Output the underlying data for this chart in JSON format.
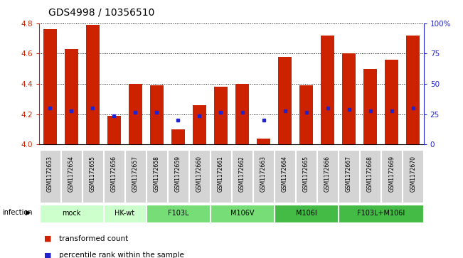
{
  "title": "GDS4998 / 10356510",
  "samples": [
    "GSM1172653",
    "GSM1172654",
    "GSM1172655",
    "GSM1172656",
    "GSM1172657",
    "GSM1172658",
    "GSM1172659",
    "GSM1172660",
    "GSM1172661",
    "GSM1172662",
    "GSM1172663",
    "GSM1172664",
    "GSM1172665",
    "GSM1172666",
    "GSM1172667",
    "GSM1172668",
    "GSM1172669",
    "GSM1172670"
  ],
  "bar_values": [
    4.76,
    4.63,
    4.79,
    4.19,
    4.4,
    4.39,
    4.1,
    4.26,
    4.38,
    4.4,
    4.04,
    4.58,
    4.39,
    4.72,
    4.6,
    4.5,
    4.56,
    4.72
  ],
  "blue_values": [
    4.24,
    4.22,
    4.24,
    4.19,
    4.21,
    4.21,
    4.16,
    4.19,
    4.21,
    4.21,
    4.16,
    4.22,
    4.21,
    4.24,
    4.23,
    4.22,
    4.22,
    4.24
  ],
  "ylim": [
    4.0,
    4.8
  ],
  "yticks_left": [
    4.0,
    4.2,
    4.4,
    4.6,
    4.8
  ],
  "yticks_right": [
    0,
    25,
    50,
    75,
    100
  ],
  "ytick_labels_right": [
    "0",
    "25",
    "50",
    "75",
    "100%"
  ],
  "bar_color": "#cc2200",
  "blue_color": "#2222cc",
  "bar_bottom": 4.0,
  "groups": [
    {
      "label": "mock",
      "start": 0,
      "end": 2,
      "color": "#ccffcc"
    },
    {
      "label": "HK-wt",
      "start": 3,
      "end": 4,
      "color": "#ccffcc"
    },
    {
      "label": "F103L",
      "start": 5,
      "end": 7,
      "color": "#77dd77"
    },
    {
      "label": "M106V",
      "start": 8,
      "end": 10,
      "color": "#77dd77"
    },
    {
      "label": "M106I",
      "start": 11,
      "end": 13,
      "color": "#44bb44"
    },
    {
      "label": "F103L+M106I",
      "start": 14,
      "end": 17,
      "color": "#44bb44"
    }
  ],
  "infection_label": "infection",
  "legend_items": [
    {
      "label": "transformed count",
      "color": "#cc2200"
    },
    {
      "label": "percentile rank within the sample",
      "color": "#2222cc"
    }
  ],
  "axis_color_left": "#cc2200",
  "axis_color_right": "#2222cc",
  "sample_box_color": "#d4d4d4",
  "title_fontsize": 10
}
